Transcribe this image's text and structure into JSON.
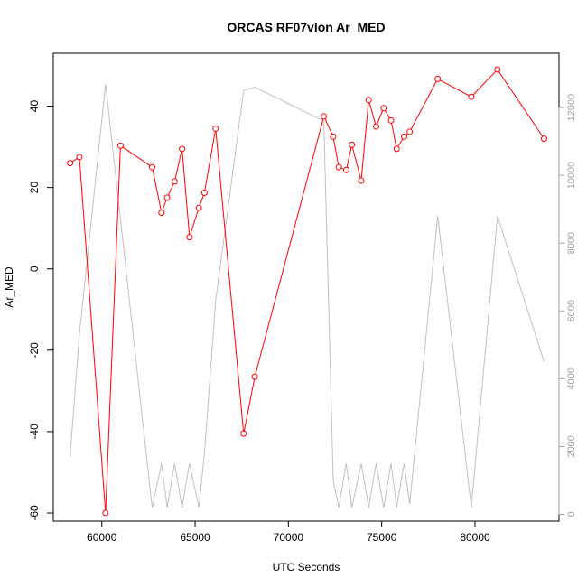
{
  "chart_data": {
    "type": "line",
    "title": "ORCAS RF07vlon Ar_MED",
    "xlabel": "UTC Seconds",
    "ylabel": "Ar_MED",
    "xlim": [
      57400,
      84500
    ],
    "ylim": [
      -62,
      53
    ],
    "y2lim": [
      -200,
      13600
    ],
    "x_ticks": [
      60000,
      65000,
      70000,
      75000,
      80000
    ],
    "y_ticks": [
      -60,
      -40,
      -20,
      0,
      20,
      40
    ],
    "y2_ticks": [
      0,
      2000,
      4000,
      6000,
      8000,
      10000,
      12000
    ],
    "grid": false,
    "colors": {
      "primary": "#ff0000",
      "secondary": "#c0c0c0",
      "right_axis": "#a0a0a0"
    },
    "series": [
      {
        "axis": "left",
        "style": "line-with-circles",
        "x": [
          58300,
          58800,
          60200,
          61000,
          62700,
          63200,
          63500,
          63900,
          64300,
          64700,
          65200,
          65500,
          66100,
          67600,
          68200,
          71900,
          72400,
          72700,
          73100,
          73400,
          73900,
          74300,
          74700,
          75100,
          75500,
          75800,
          76200,
          76500,
          78000,
          79800,
          81200,
          83700
        ],
        "y": [
          26,
          27.5,
          -60,
          30.3,
          25,
          13.8,
          17.5,
          21.5,
          29.5,
          7.8,
          15,
          18.7,
          34.5,
          -40.5,
          -26.5,
          37.5,
          32.5,
          25,
          24.3,
          30.5,
          21.7,
          41.5,
          35,
          39.5,
          36.5,
          29.5,
          32.5,
          33.7,
          46.7,
          42.3,
          49,
          32
        ]
      },
      {
        "axis": "right",
        "style": "line",
        "x": [
          58300,
          58800,
          60200,
          62700,
          63200,
          63500,
          63900,
          64300,
          64700,
          65200,
          65500,
          66100,
          67600,
          68200,
          71900,
          72400,
          72700,
          73100,
          73400,
          73900,
          74300,
          74700,
          75100,
          75500,
          75800,
          76200,
          76500,
          78000,
          79800,
          81200,
          83700
        ],
        "y": [
          1700,
          5300,
          12700,
          200,
          1500,
          200,
          1500,
          200,
          1500,
          200,
          1800,
          6300,
          12500,
          12600,
          11600,
          1000,
          200,
          1500,
          200,
          1500,
          200,
          1500,
          200,
          1500,
          200,
          1500,
          300,
          8800,
          200,
          8800,
          4500
        ]
      }
    ]
  }
}
